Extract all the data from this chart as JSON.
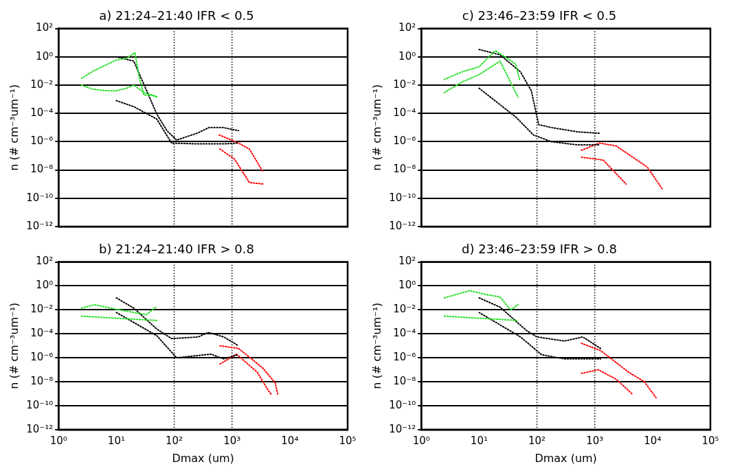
{
  "chart_data": [
    {
      "type": "line",
      "title": "a) 21:24–21:40 IFR < 0.5",
      "ylabel": "n (# cm⁻³um⁻¹)",
      "xlim": [
        1,
        100000
      ],
      "ylim": [
        1e-12,
        100
      ],
      "log": "xy",
      "grid": "y",
      "legend": false,
      "marker": "none",
      "line_style": "dotted",
      "tick_labels": "y",
      "xticks": [
        {
          "value": 1,
          "label": null
        },
        {
          "value": 10,
          "label": null
        },
        {
          "value": 100,
          "label": null
        },
        {
          "value": 1000,
          "label": null
        },
        {
          "value": 10000,
          "label": null
        },
        {
          "value": 100000,
          "label": null
        }
      ],
      "yticks": [
        {
          "value": 100,
          "label": "10²"
        },
        {
          "value": 1,
          "label": "10⁰"
        },
        {
          "value": 0.01,
          "label": "10⁻²"
        },
        {
          "value": 0.0001,
          "label": "10⁻⁴"
        },
        {
          "value": 1e-06,
          "label": "10⁻⁶"
        },
        {
          "value": 1e-08,
          "label": "10⁻⁸"
        },
        {
          "value": 1e-10,
          "label": "10⁻¹⁰"
        },
        {
          "value": 1e-12,
          "label": "10⁻¹²"
        }
      ],
      "ref_lines": [
        {
          "axis": "x",
          "value": 100,
          "line_style": "dotted"
        },
        {
          "axis": "x",
          "value": 1000,
          "line_style": "dotted"
        }
      ],
      "series": [
        {
          "color": "#22e022",
          "x": [
            2.5,
            4,
            7,
            10,
            15,
            21,
            25,
            30,
            40,
            50
          ],
          "values": [
            0.03,
            0.1,
            0.3,
            0.6,
            0.8,
            2,
            0.03,
            0.002,
            0.002,
            0.0015
          ]
        },
        {
          "color": "#22e022",
          "x": [
            2.5,
            4,
            7,
            10,
            15,
            20,
            30,
            50
          ],
          "values": [
            0.01,
            0.005,
            0.004,
            0.004,
            0.006,
            0.01,
            0.003,
            0.0015
          ]
        },
        {
          "color": "#000000",
          "x": [
            10,
            20,
            50,
            75,
            110,
            250,
            400,
            700,
            1300
          ],
          "values": [
            1,
            0.5,
            9e-05,
            6e-06,
            1.3e-06,
            4e-06,
            1e-05,
            1e-05,
            6e-06
          ]
        },
        {
          "color": "#000000",
          "x": [
            10,
            20,
            50,
            90,
            250,
            700,
            1300
          ],
          "values": [
            0.0008,
            0.0003,
            4e-05,
            8e-07,
            7e-07,
            7e-07,
            8e-07
          ]
        },
        {
          "color": "#ff0000",
          "x": [
            600,
            1300,
            2000,
            3400
          ],
          "values": [
            3e-06,
            8e-07,
            3e-07,
            8e-09
          ]
        },
        {
          "color": "#ff0000",
          "x": [
            620,
            1100,
            2000,
            3600
          ],
          "values": [
            3e-07,
            6e-08,
            1.3e-09,
            1e-09
          ]
        }
      ]
    },
    {
      "type": "line",
      "title": "c) 23:46–23:59 IFR < 0.5",
      "ylabel": "n (# cm⁻³um⁻¹)",
      "xlim": [
        1,
        100000
      ],
      "ylim": [
        1e-12,
        100
      ],
      "log": "xy",
      "grid": "y",
      "legend": false,
      "marker": "none",
      "line_style": "dotted",
      "tick_labels": "y",
      "xticks": [
        {
          "value": 1,
          "label": null
        },
        {
          "value": 10,
          "label": null
        },
        {
          "value": 100,
          "label": null
        },
        {
          "value": 1000,
          "label": null
        },
        {
          "value": 10000,
          "label": null
        },
        {
          "value": 100000,
          "label": null
        }
      ],
      "yticks": [
        {
          "value": 100,
          "label": "10²"
        },
        {
          "value": 1,
          "label": "10⁰"
        },
        {
          "value": 0.01,
          "label": "10⁻²"
        },
        {
          "value": 0.0001,
          "label": "10⁻⁴"
        },
        {
          "value": 1e-06,
          "label": "10⁻⁶"
        },
        {
          "value": 1e-08,
          "label": "10⁻⁸"
        },
        {
          "value": 1e-10,
          "label": "10⁻¹⁰"
        },
        {
          "value": 1e-12,
          "label": "10⁻¹²"
        }
      ],
      "ref_lines": [
        {
          "axis": "x",
          "value": 100,
          "line_style": "dotted"
        },
        {
          "axis": "x",
          "value": 1000,
          "line_style": "dotted"
        }
      ],
      "series": [
        {
          "color": "#22e022",
          "x": [
            2.5,
            5,
            10,
            19,
            32,
            43,
            50
          ],
          "values": [
            0.025,
            0.085,
            0.2,
            2.7,
            0.7,
            0.3,
            0.025
          ]
        },
        {
          "color": "#22e022",
          "x": [
            2.5,
            5,
            10,
            23,
            35,
            47
          ],
          "values": [
            0.003,
            0.016,
            0.056,
            0.5,
            0.016,
            0.0014
          ]
        },
        {
          "color": "#000000",
          "x": [
            10,
            23,
            52,
            80,
            107,
            178,
            500,
            1200
          ],
          "values": [
            3.3,
            1.4,
            0.085,
            0.004,
            1.6e-05,
            1e-05,
            5e-06,
            4e-06
          ]
        },
        {
          "color": "#000000",
          "x": [
            10,
            43,
            87,
            178,
            500,
            1200
          ],
          "values": [
            0.006,
            5.6e-05,
            3e-06,
            1e-06,
            6e-07,
            6e-07
          ]
        },
        {
          "color": "#ff0000",
          "x": [
            590,
            1200,
            2350,
            8100,
            15000
          ],
          "values": [
            2.5e-07,
            8e-07,
            5e-07,
            1.6e-08,
            4e-10
          ]
        },
        {
          "color": "#ff0000",
          "x": [
            590,
            1400,
            3500
          ],
          "values": [
            8e-08,
            5e-08,
            1e-09
          ]
        }
      ]
    },
    {
      "type": "line",
      "title": "b) 21:24–21:40 IFR > 0.8",
      "xlabel": "Dmax (um)",
      "ylabel": "n (# cm⁻³um⁻¹)",
      "xlim": [
        1,
        100000
      ],
      "ylim": [
        1e-12,
        100
      ],
      "log": "xy",
      "grid": "y",
      "legend": false,
      "marker": "none",
      "line_style": "dotted",
      "xticks": [
        {
          "value": 1,
          "label": "10⁰"
        },
        {
          "value": 10,
          "label": "10¹"
        },
        {
          "value": 100,
          "label": "10²"
        },
        {
          "value": 1000,
          "label": "10³"
        },
        {
          "value": 10000,
          "label": "10⁴"
        },
        {
          "value": 100000,
          "label": "10⁵"
        }
      ],
      "yticks": [
        {
          "value": 100,
          "label": "10²"
        },
        {
          "value": 1,
          "label": "10⁰"
        },
        {
          "value": 0.01,
          "label": "10⁻²"
        },
        {
          "value": 0.0001,
          "label": "10⁻⁴"
        },
        {
          "value": 1e-06,
          "label": "10⁻⁶"
        },
        {
          "value": 1e-08,
          "label": "10⁻⁸"
        },
        {
          "value": 1e-10,
          "label": "10⁻¹⁰"
        },
        {
          "value": 1e-12,
          "label": "10⁻¹²"
        }
      ],
      "ref_lines": [
        {
          "axis": "x",
          "value": 100,
          "line_style": "dotted"
        },
        {
          "axis": "x",
          "value": 1000,
          "line_style": "dotted"
        }
      ],
      "series": [
        {
          "color": "#22e022",
          "x": [
            2.5,
            4.2,
            10,
            33,
            50
          ],
          "values": [
            0.014,
            0.027,
            0.011,
            0.004,
            0.02
          ]
        },
        {
          "color": "#22e022",
          "x": [
            2.5,
            10,
            50
          ],
          "values": [
            0.003,
            0.002,
            0.0013
          ]
        },
        {
          "color": "#000000",
          "x": [
            10,
            20,
            50,
            90,
            260,
            390,
            720,
            1300
          ],
          "values": [
            0.1,
            0.014,
            0.00025,
            4e-05,
            5.5e-05,
            0.00013,
            5.5e-05,
            1e-05
          ]
        },
        {
          "color": "#000000",
          "x": [
            10,
            50,
            110,
            430,
            720,
            1300
          ],
          "values": [
            0.006,
            7e-05,
            1e-06,
            2e-06,
            8e-07,
            1.9e-06
          ]
        },
        {
          "color": "#ff0000",
          "x": [
            620,
            1300,
            3400,
            5600,
            6200
          ],
          "values": [
            1e-05,
            6e-06,
            1.4e-07,
            8e-09,
            8.5e-10
          ]
        },
        {
          "color": "#ff0000",
          "x": [
            620,
            1200,
            2750,
            4200,
            4800
          ],
          "values": [
            3e-07,
            2e-06,
            6e-08,
            2e-09,
            8.5e-10
          ]
        }
      ]
    },
    {
      "type": "line",
      "title": "d) 23:46–23:59 IFR > 0.8",
      "xlabel": "Dmax (um)",
      "ylabel": "n (# cm⁻³um⁻¹)",
      "xlim": [
        1,
        100000
      ],
      "ylim": [
        1e-12,
        100
      ],
      "log": "xy",
      "grid": "y",
      "legend": false,
      "marker": "none",
      "line_style": "dotted",
      "xticks": [
        {
          "value": 1,
          "label": "10⁰"
        },
        {
          "value": 10,
          "label": "10¹"
        },
        {
          "value": 100,
          "label": "10²"
        },
        {
          "value": 1000,
          "label": "10³"
        },
        {
          "value": 10000,
          "label": "10⁴"
        },
        {
          "value": 100000,
          "label": "10⁵"
        }
      ],
      "yticks": [
        {
          "value": 100,
          "label": "10²"
        },
        {
          "value": 1,
          "label": "10⁰"
        },
        {
          "value": 0.01,
          "label": "10⁻²"
        },
        {
          "value": 0.0001,
          "label": "10⁻⁴"
        },
        {
          "value": 1e-06,
          "label": "10⁻⁶"
        },
        {
          "value": 1e-08,
          "label": "10⁻⁸"
        },
        {
          "value": 1e-10,
          "label": "10⁻¹⁰"
        },
        {
          "value": 1e-12,
          "label": "10⁻¹²"
        }
      ],
      "ref_lines": [
        {
          "axis": "x",
          "value": 100,
          "line_style": "dotted"
        },
        {
          "axis": "x",
          "value": 1000,
          "line_style": "dotted"
        }
      ],
      "series": [
        {
          "color": "#22e022",
          "x": [
            2.5,
            6.8,
            14,
            23,
            35,
            47
          ],
          "values": [
            0.1,
            0.4,
            0.18,
            0.12,
            0.01,
            0.027
          ]
        },
        {
          "color": "#22e022",
          "x": [
            2.5,
            10,
            47
          ],
          "values": [
            0.003,
            0.002,
            0.0013
          ]
        },
        {
          "color": "#000000",
          "x": [
            10,
            23,
            65,
            100,
            300,
            620,
            1260
          ],
          "values": [
            0.1,
            0.017,
            0.0002,
            5.5e-05,
            2.5e-05,
            5.5e-05,
            6e-06
          ]
        },
        {
          "color": "#000000",
          "x": [
            10,
            52,
            120,
            300,
            1260
          ],
          "values": [
            0.006,
            5.5e-05,
            1.8e-06,
            8e-07,
            8e-07
          ]
        },
        {
          "color": "#ff0000",
          "x": [
            590,
            1260,
            3900,
            7200,
            11500
          ],
          "values": [
            1.6e-05,
            4e-06,
            6e-08,
            1e-08,
            4.5e-10
          ]
        },
        {
          "color": "#ff0000",
          "x": [
            590,
            1150,
            2350,
            4400
          ],
          "values": [
            5e-08,
            1e-07,
            1.6e-08,
            1e-09
          ]
        }
      ]
    }
  ]
}
